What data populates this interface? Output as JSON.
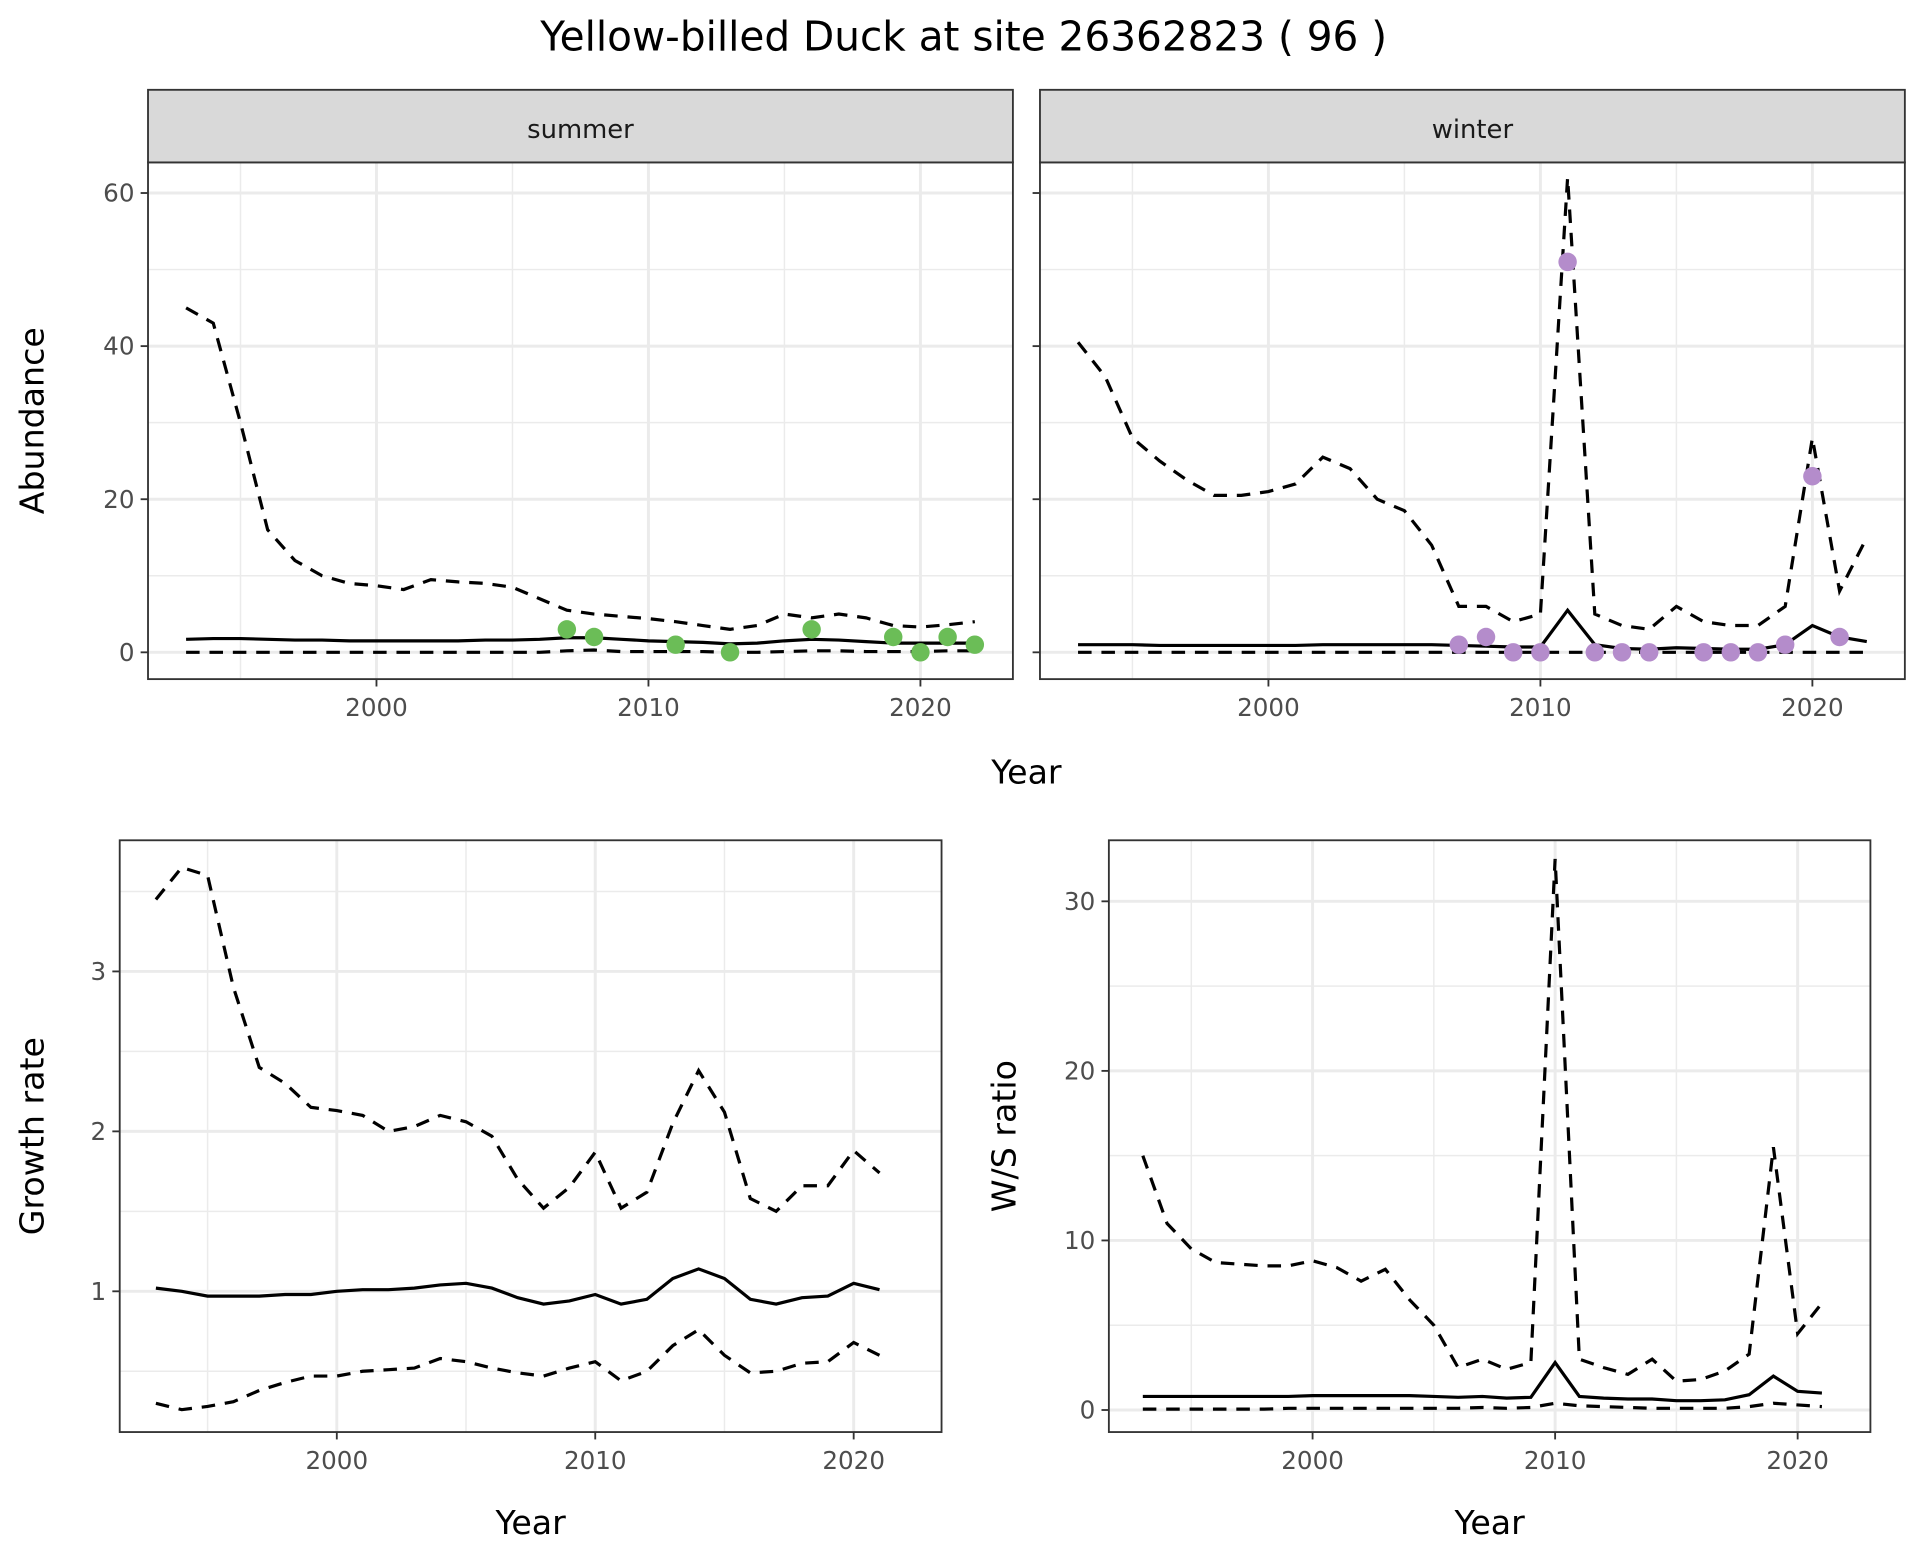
{
  "title": "Yellow-billed Duck at site 26362823 ( 96 )",
  "colors": {
    "summer_points": "#6bbd57",
    "winter_points": "#b48ccb",
    "lines": "#000000",
    "strip_bg": "#d9d9d9",
    "grid": "#ebebeb"
  },
  "chart_data": [
    {
      "type": "line",
      "facet": "summer",
      "xlabel": "Year",
      "ylabel": "Abundance",
      "xlim": [
        1991.6,
        2023.4
      ],
      "ylim": [
        -3.5,
        64
      ],
      "xticks": [
        2000,
        2010,
        2020
      ],
      "yticks": [
        0,
        20,
        40,
        60
      ],
      "x": [
        1993,
        1994,
        1995,
        1996,
        1997,
        1998,
        1999,
        2000,
        2001,
        2002,
        2003,
        2004,
        2005,
        2006,
        2007,
        2008,
        2009,
        2010,
        2011,
        2012,
        2013,
        2014,
        2015,
        2016,
        2017,
        2018,
        2019,
        2020,
        2021,
        2022
      ],
      "mean": [
        1.7,
        1.8,
        1.8,
        1.7,
        1.6,
        1.6,
        1.5,
        1.5,
        1.5,
        1.5,
        1.5,
        1.6,
        1.6,
        1.7,
        1.9,
        1.9,
        1.7,
        1.5,
        1.4,
        1.3,
        1.1,
        1.2,
        1.5,
        1.7,
        1.6,
        1.4,
        1.2,
        1.2,
        1.2,
        1.2
      ],
      "upper": [
        45,
        43,
        30,
        16,
        12,
        10,
        9,
        8.7,
        8.2,
        9.5,
        9.2,
        9,
        8.5,
        7,
        5.5,
        5,
        4.7,
        4.4,
        4,
        3.5,
        3,
        3.5,
        5,
        4.5,
        5,
        4.5,
        3.5,
        3.3,
        3.6,
        4
      ],
      "lower": [
        0,
        0,
        0,
        0,
        0,
        0,
        0,
        0,
        0,
        0,
        0,
        0,
        0,
        0,
        0.2,
        0.3,
        0.1,
        0.1,
        0.1,
        0.1,
        0,
        0,
        0.1,
        0.2,
        0.2,
        0.1,
        0.1,
        0.1,
        0.2,
        0.2
      ],
      "points": {
        "x": [
          2007,
          2008,
          2011,
          2013,
          2016,
          2019,
          2020,
          2021,
          2022
        ],
        "y": [
          3,
          2,
          1,
          0,
          3,
          2,
          0,
          2,
          1
        ]
      }
    },
    {
      "type": "line",
      "facet": "winter",
      "xlabel": "Year",
      "ylabel": "Abundance",
      "xlim": [
        1991.6,
        2023.4
      ],
      "ylim": [
        -3.5,
        64
      ],
      "xticks": [
        2000,
        2010,
        2020
      ],
      "yticks": [
        0,
        20,
        40,
        60
      ],
      "x": [
        1993,
        1994,
        1995,
        1996,
        1997,
        1998,
        1999,
        2000,
        2001,
        2002,
        2003,
        2004,
        2005,
        2006,
        2007,
        2008,
        2009,
        2010,
        2011,
        2012,
        2013,
        2014,
        2015,
        2016,
        2017,
        2018,
        2019,
        2020,
        2021,
        2022
      ],
      "mean": [
        1,
        1,
        1,
        0.9,
        0.9,
        0.9,
        0.9,
        0.9,
        0.9,
        1,
        1,
        1,
        1,
        1,
        0.9,
        0.8,
        0.7,
        0.7,
        5.5,
        1,
        0.5,
        0.4,
        0.6,
        0.5,
        0.4,
        0.4,
        1,
        3.5,
        2,
        1.4
      ],
      "upper": [
        40.5,
        36,
        28,
        25,
        22.5,
        20.5,
        20.5,
        21,
        22,
        25.5,
        24,
        20,
        18.5,
        14,
        6,
        6,
        4,
        5,
        62,
        5,
        3.5,
        3,
        6,
        4,
        3.5,
        3.5,
        6,
        28,
        8,
        15
      ],
      "lower": [
        0,
        0,
        0,
        0,
        0,
        0,
        0,
        0,
        0,
        0,
        0,
        0,
        0,
        0,
        0,
        0,
        0,
        0,
        0,
        0,
        0,
        0,
        0,
        0,
        0,
        0,
        0,
        0,
        0,
        0
      ],
      "points": {
        "x": [
          2007,
          2008,
          2009,
          2010,
          2011,
          2012,
          2013,
          2014,
          2016,
          2017,
          2018,
          2019,
          2020,
          2021
        ],
        "y": [
          1,
          2,
          0,
          0,
          51,
          0,
          0,
          0,
          0,
          0,
          0,
          1,
          23,
          2
        ]
      }
    },
    {
      "type": "line",
      "xlabel": "Year",
      "ylabel": "Growth rate",
      "xlim": [
        1991.6,
        2023.4
      ],
      "ylim": [
        0.12,
        3.82
      ],
      "xticks": [
        2000,
        2010,
        2020
      ],
      "yticks": [
        1,
        2,
        3
      ],
      "x": [
        1993,
        1994,
        1995,
        1996,
        1997,
        1998,
        1999,
        2000,
        2001,
        2002,
        2003,
        2004,
        2005,
        2006,
        2007,
        2008,
        2009,
        2010,
        2011,
        2012,
        2013,
        2014,
        2015,
        2016,
        2017,
        2018,
        2019,
        2020,
        2021
      ],
      "mean": [
        1.02,
        1.0,
        0.97,
        0.97,
        0.97,
        0.98,
        0.98,
        1.0,
        1.01,
        1.01,
        1.02,
        1.04,
        1.05,
        1.02,
        0.96,
        0.92,
        0.94,
        0.98,
        0.92,
        0.95,
        1.08,
        1.14,
        1.08,
        0.95,
        0.92,
        0.96,
        0.97,
        1.05,
        1.01
      ],
      "upper": [
        3.45,
        3.65,
        3.6,
        2.9,
        2.4,
        2.3,
        2.15,
        2.13,
        2.1,
        2.0,
        2.03,
        2.1,
        2.06,
        1.97,
        1.7,
        1.52,
        1.65,
        1.87,
        1.52,
        1.62,
        2.05,
        2.38,
        2.12,
        1.58,
        1.5,
        1.66,
        1.66,
        1.88,
        1.74
      ],
      "lower": [
        0.3,
        0.26,
        0.28,
        0.31,
        0.38,
        0.43,
        0.47,
        0.47,
        0.5,
        0.51,
        0.52,
        0.58,
        0.56,
        0.52,
        0.49,
        0.47,
        0.52,
        0.56,
        0.44,
        0.5,
        0.66,
        0.76,
        0.6,
        0.49,
        0.5,
        0.55,
        0.56,
        0.68,
        0.6
      ]
    },
    {
      "type": "line",
      "xlabel": "Year",
      "ylabel": "W/S ratio",
      "xlim": [
        1991.6,
        2023.0
      ],
      "ylim": [
        -1.3,
        33.6
      ],
      "xticks": [
        2000,
        2010,
        2020
      ],
      "yticks": [
        0,
        10,
        20,
        30
      ],
      "x": [
        1993,
        1994,
        1995,
        1996,
        1997,
        1998,
        1999,
        2000,
        2001,
        2002,
        2003,
        2004,
        2005,
        2006,
        2007,
        2008,
        2009,
        2010,
        2011,
        2012,
        2013,
        2014,
        2015,
        2016,
        2017,
        2018,
        2019,
        2020,
        2021
      ],
      "mean": [
        0.8,
        0.8,
        0.8,
        0.8,
        0.8,
        0.8,
        0.8,
        0.85,
        0.85,
        0.85,
        0.85,
        0.85,
        0.8,
        0.75,
        0.8,
        0.7,
        0.75,
        2.8,
        0.8,
        0.7,
        0.65,
        0.65,
        0.55,
        0.55,
        0.6,
        0.9,
        2.0,
        1.1,
        1.0
      ],
      "upper": [
        15,
        11,
        9.5,
        8.7,
        8.6,
        8.5,
        8.5,
        8.8,
        8.4,
        7.6,
        8.3,
        6.5,
        5,
        2.5,
        3,
        2.4,
        2.8,
        32.5,
        3,
        2.5,
        2.1,
        3,
        1.7,
        1.8,
        2.3,
        3.3,
        15.5,
        4.5,
        6.3
      ],
      "lower": [
        0.05,
        0.05,
        0.05,
        0.05,
        0.05,
        0.05,
        0.1,
        0.1,
        0.1,
        0.1,
        0.1,
        0.1,
        0.1,
        0.1,
        0.15,
        0.1,
        0.15,
        0.4,
        0.25,
        0.2,
        0.15,
        0.1,
        0.1,
        0.1,
        0.1,
        0.2,
        0.4,
        0.3,
        0.2
      ]
    }
  ]
}
